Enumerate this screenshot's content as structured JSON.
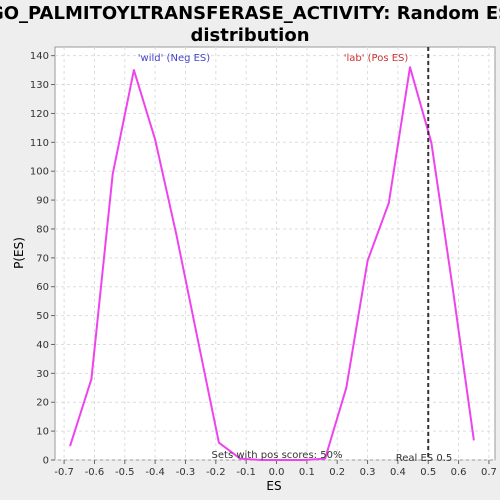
{
  "chart_data": {
    "type": "line",
    "title_lines": [
      "GO_PALMITOYLTRANSFERASE_ACTIVITY: Random ES",
      "distribution"
    ],
    "xlabel": "ES",
    "ylabel": "P(ES)",
    "xlim": [
      -0.73,
      0.72
    ],
    "ylim": [
      0,
      143
    ],
    "x_ticks": [
      -0.7,
      -0.6,
      -0.5,
      -0.4,
      -0.3,
      -0.2,
      -0.1,
      0.0,
      0.1,
      0.2,
      0.3,
      0.4,
      0.5,
      0.6,
      0.7
    ],
    "x_tick_labels": [
      "-0.7",
      "-0.6",
      "-0.5",
      "-0.4",
      "-0.3",
      "-0.2",
      "-0.1",
      "0.0",
      "0.1",
      "0.2",
      "0.3",
      "0.4",
      "0.5",
      "0.6",
      "0.7"
    ],
    "y_ticks": [
      0,
      10,
      20,
      30,
      40,
      50,
      60,
      70,
      80,
      90,
      100,
      110,
      120,
      130,
      140
    ],
    "y_tick_labels": [
      "0",
      "10",
      "20",
      "30",
      "40",
      "50",
      "60",
      "70",
      "80",
      "90",
      "100",
      "110",
      "120",
      "130",
      "140"
    ],
    "grid": true,
    "series": [
      {
        "x": [
          -0.68,
          -0.61,
          -0.54,
          -0.47,
          -0.4,
          -0.33,
          -0.26,
          -0.19,
          -0.12,
          -0.05,
          0.02,
          0.09,
          0.16,
          0.23,
          0.3,
          0.37,
          0.44,
          0.51,
          0.58,
          0.65
        ],
        "y": [
          5,
          28,
          99,
          135,
          111,
          78,
          42,
          6,
          0.5,
          0,
          0,
          0,
          0.5,
          25,
          69,
          89,
          136,
          110,
          60,
          7
        ],
        "color": "#ee44ee"
      }
    ],
    "reference_line": {
      "x": 0.5,
      "style": "dashed",
      "color": "#333333"
    },
    "annotations": {
      "neg_label": "'wild' (Neg ES)",
      "neg_color": "#4444cc",
      "pos_label": "'lab' (Pos ES)",
      "pos_color": "#cc3333",
      "pos_scores": "Sets with pos scores: 50%",
      "real_es": "Real ES 0.5"
    }
  }
}
